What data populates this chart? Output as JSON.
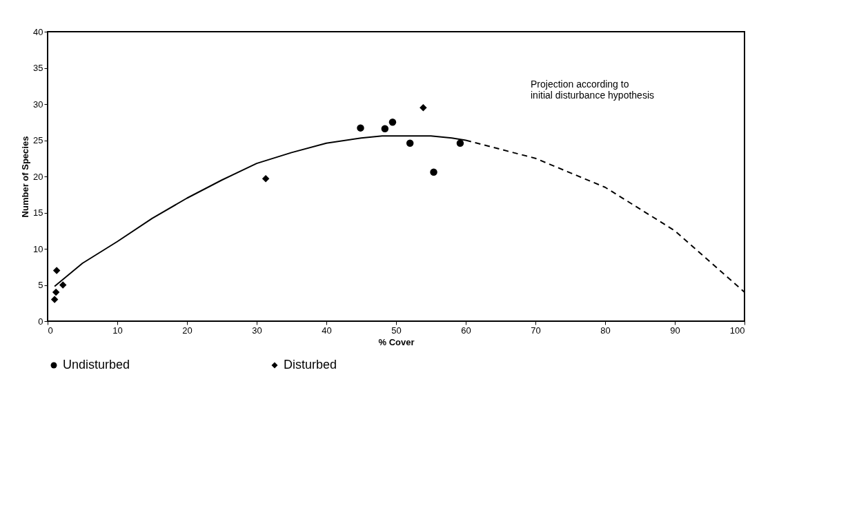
{
  "chart_data": {
    "type": "scatter",
    "xlabel": "% Cover",
    "ylabel": "Number of Species",
    "xlim": [
      0,
      100
    ],
    "xticks": [
      0,
      10,
      20,
      30,
      40,
      50,
      60,
      70,
      80,
      90,
      100
    ],
    "ylim": [
      0,
      40
    ],
    "yticks": [
      0,
      5,
      10,
      15,
      20,
      25,
      30,
      35,
      40
    ],
    "grid": false,
    "legend": "bottom",
    "annotations": [
      "Projection according to\ninitial disturbance hypothesis"
    ],
    "series": [
      {
        "name": "Undisturbed",
        "marker": "circle",
        "color": "#000000",
        "x": [
          44.9,
          48.4,
          49.5,
          52.0,
          55.4,
          59.2
        ],
        "values": [
          26.7,
          26.6,
          27.5,
          24.6,
          20.6,
          24.6
        ]
      },
      {
        "name": "Disturbed",
        "marker": "diamond",
        "color": "#000000",
        "x": [
          1.0,
          1.2,
          2.2,
          1.3,
          31.3,
          53.9
        ],
        "values": [
          3,
          4,
          5,
          7,
          19.7,
          29.5
        ]
      },
      {
        "type": "line",
        "line_style": "solid",
        "color": "#000000",
        "x": [
          1,
          5,
          10,
          15,
          20,
          25,
          30,
          35,
          40,
          45,
          48,
          55,
          58,
          60
        ],
        "values": [
          4.8,
          8,
          11,
          14.2,
          17,
          19.5,
          21.8,
          23.3,
          24.6,
          25.3,
          25.6,
          25.6,
          25.3,
          25
        ]
      },
      {
        "type": "line",
        "line_style": "dashed",
        "color": "#000000",
        "x": [
          60,
          70,
          80,
          90,
          100
        ],
        "values": [
          25,
          22.5,
          18.5,
          12.5,
          4
        ]
      }
    ]
  }
}
